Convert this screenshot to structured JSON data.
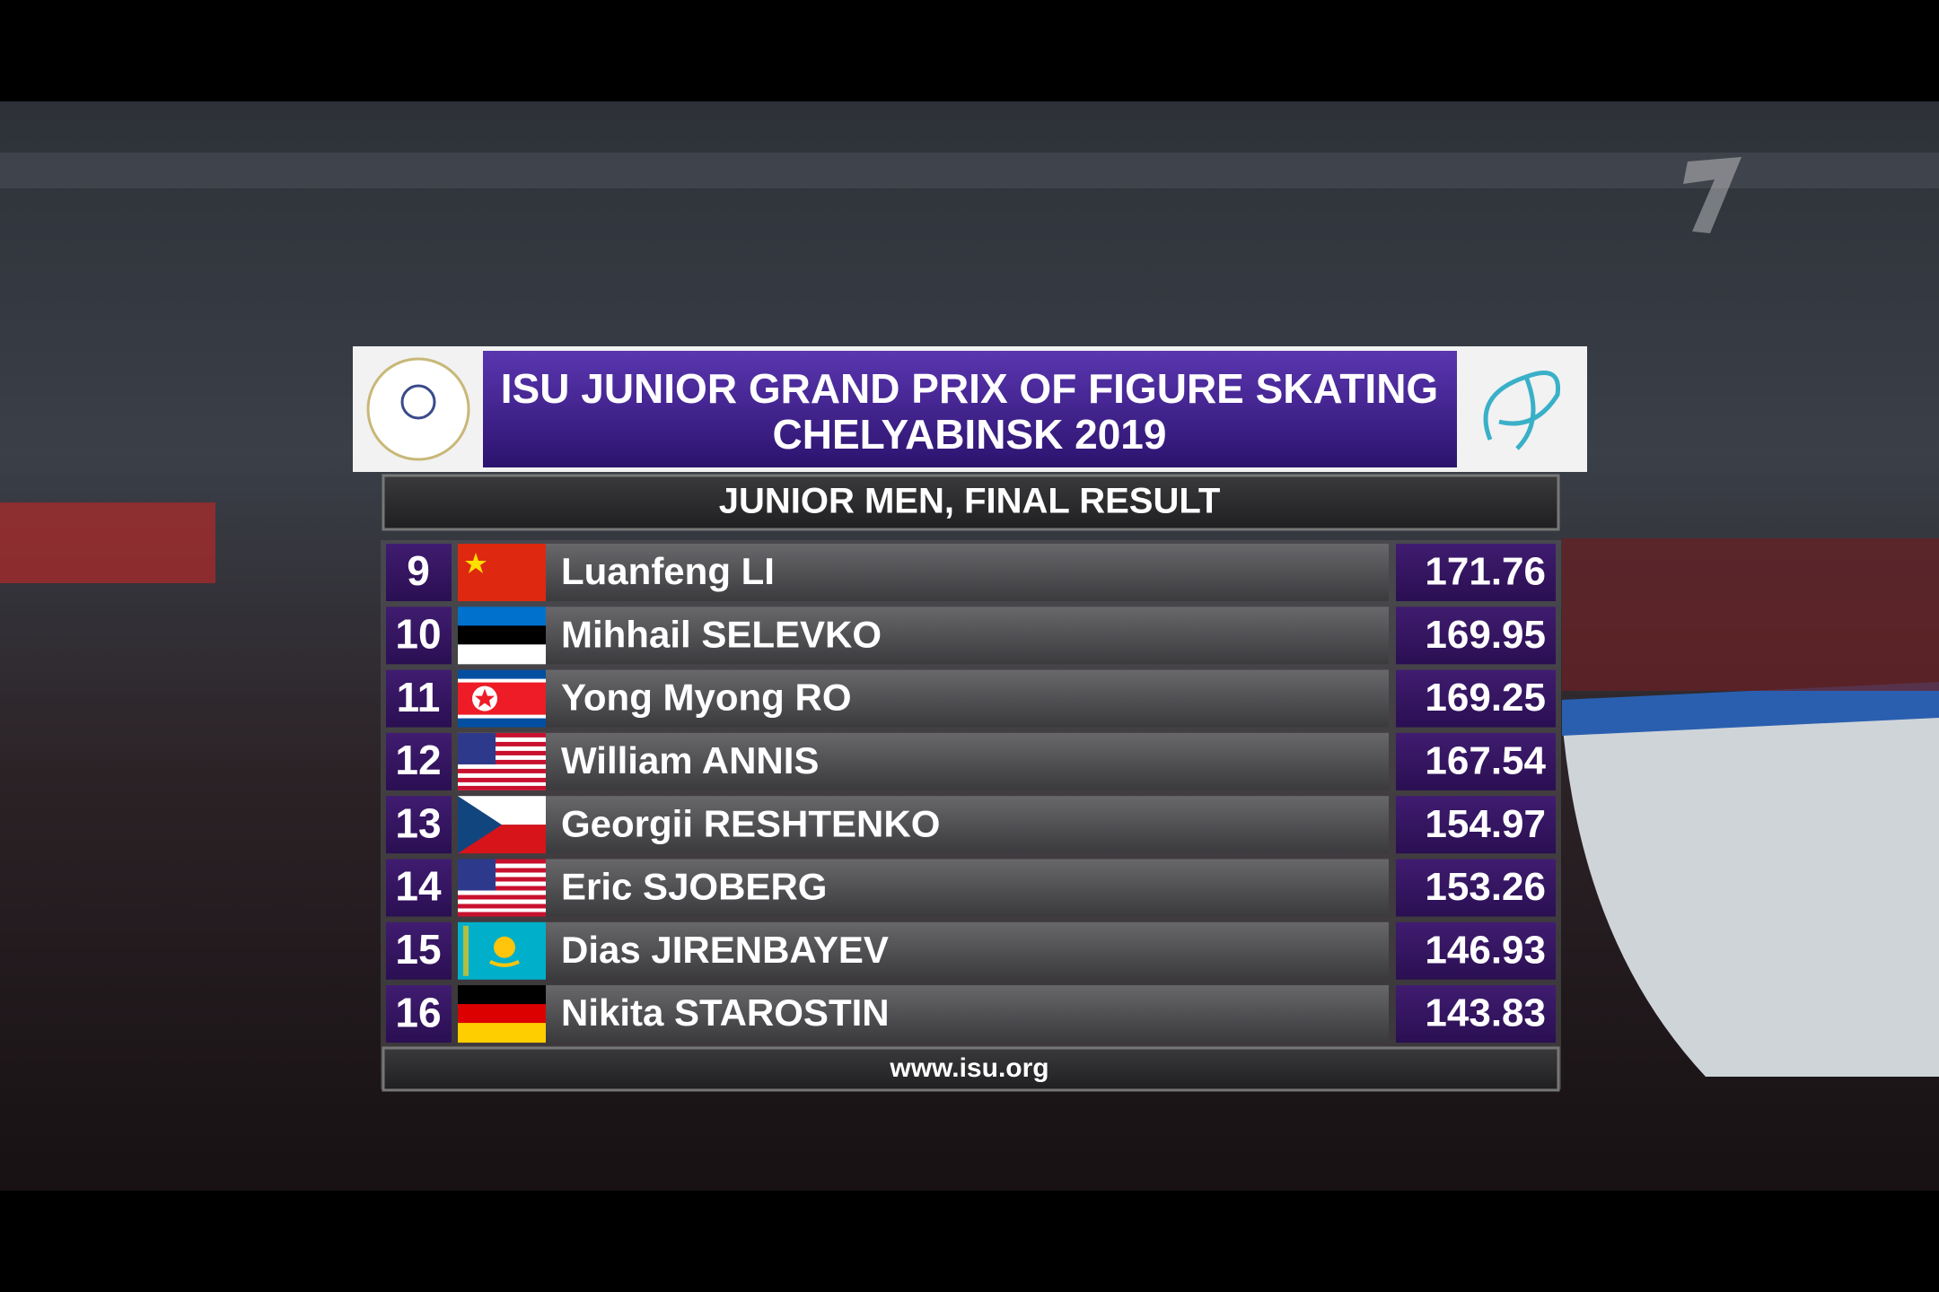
{
  "header": {
    "title_line1": "ISU JUNIOR GRAND PRIX OF FIGURE SKATING",
    "title_line2": "CHELYABINSK 2019",
    "subtitle": "JUNIOR MEN, FINAL RESULT"
  },
  "rows": [
    {
      "rank": 9,
      "name": "Luanfeng LI",
      "score": 171.76
    },
    {
      "rank": 10,
      "name": "Mihhail SELEVKO",
      "score": 169.95
    },
    {
      "rank": 11,
      "name": "Yong Myong RO",
      "score": 169.25
    },
    {
      "rank": 12,
      "name": "William ANNIS",
      "score": 167.54
    },
    {
      "rank": 13,
      "name": "Georgii RESHTENKO",
      "score": 154.97
    },
    {
      "rank": 14,
      "name": "Eric SJOBERG",
      "score": 153.26
    },
    {
      "rank": 15,
      "name": "Dias JIRENBAYEV",
      "score": 146.93
    },
    {
      "rank": 16,
      "name": "Nikita STAROSTIN",
      "score": 143.83
    }
  ],
  "footer": "www.isu.org"
}
